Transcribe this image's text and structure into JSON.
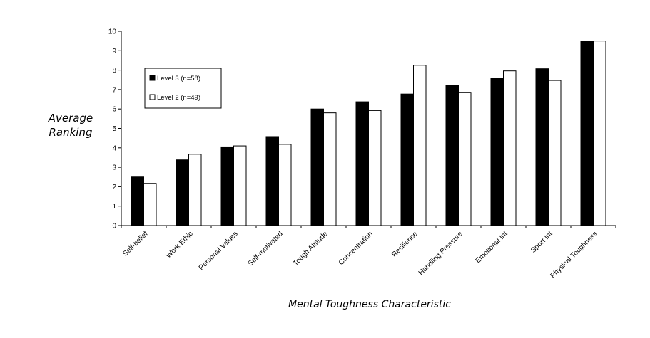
{
  "chart_data": {
    "type": "bar",
    "title": "",
    "xlabel": "Mental Toughness Characteristic",
    "ylabel": [
      "Average",
      "Ranking"
    ],
    "ylim": [
      0,
      10
    ],
    "yticks": [
      0,
      1,
      2,
      3,
      4,
      5,
      6,
      7,
      8,
      9,
      10
    ],
    "grid": false,
    "legend_position": "top-left",
    "categories": [
      "Self-belief",
      "Work Ethic",
      "Personal Values",
      "Self-motivated",
      "Tough Attitude",
      "Concentration",
      "Resilience",
      "Handling Pressure",
      "Emotional Int",
      "Sport Int",
      "Physical Toughness"
    ],
    "series": [
      {
        "name": "Level 3 (n=58)",
        "color": "#000000",
        "values": [
          2.5,
          3.38,
          4.05,
          4.58,
          6.0,
          6.37,
          6.77,
          7.22,
          7.6,
          8.07,
          9.5
        ]
      },
      {
        "name": "Level 2 (n=49)",
        "color": "#ffffff",
        "values": [
          2.17,
          3.67,
          4.1,
          4.18,
          5.8,
          5.92,
          8.25,
          6.86,
          7.96,
          7.47,
          9.5
        ]
      }
    ]
  }
}
